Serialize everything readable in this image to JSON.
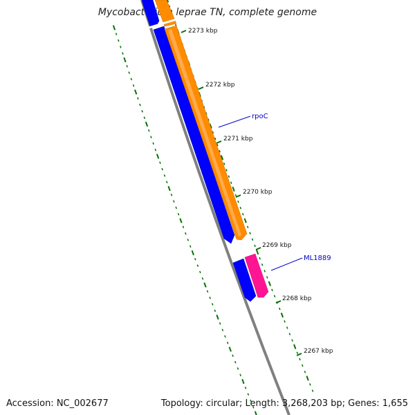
{
  "title": "Mycobacterium leprae TN, complete genome",
  "footer": {
    "accession": "Accession: NC_002677",
    "summary": "Topology: circular; Length: 3,268,203 bp; Genes: 1,655"
  },
  "ticks": [
    "2273 kbp",
    "2272 kbp",
    "2271 kbp",
    "2270 kbp",
    "2269 kbp",
    "2268 kbp",
    "2267 kbp"
  ],
  "genes": [
    {
      "name": "rpoC",
      "strand": "forward",
      "color": "#ff8c00"
    },
    {
      "name": "ML1889",
      "strand": "forward",
      "color": "#ff1493"
    },
    {
      "name": "",
      "strand": "reverse",
      "color": "#0000ff"
    }
  ],
  "colors": {
    "backbone": "#808080",
    "tick": "#007000",
    "forward_cds": "#ff8c00",
    "forward_cds_2": "#ff1493",
    "reverse_cds": "#0000ff",
    "label_line": "#0000cc"
  }
}
